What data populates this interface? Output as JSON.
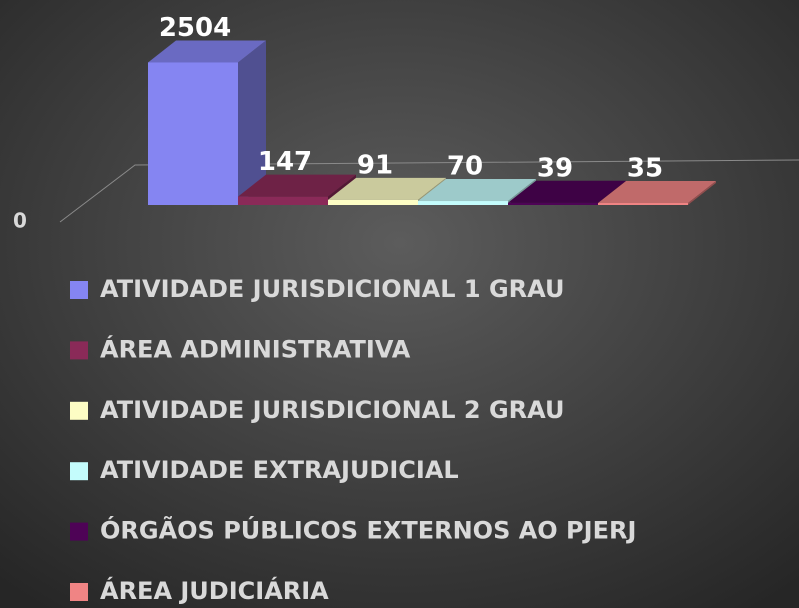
{
  "chart_data": {
    "type": "bar3d",
    "categories": [
      "ATIVIDADE JURISDICIONAL 1 GRAU",
      "ÁREA ADMINISTRATIVA",
      "ATIVIDADE JURISDICIONAL 2 GRAU",
      "ATIVIDADE EXTRAJUDICIAL",
      "ÓRGÃOS PÚBLICOS EXTERNOS AO PJERJ",
      "ÁREA JUDICIÁRIA"
    ],
    "values": [
      2504,
      147,
      91,
      70,
      39,
      35
    ],
    "colors": [
      "#8585f2",
      "#8a2a58",
      "#fdfdc4",
      "#c4fcfc",
      "#4e0356",
      "#f08484"
    ],
    "ylim": [
      0,
      2600
    ],
    "yticks": [
      0
    ],
    "legend": "bottom"
  }
}
